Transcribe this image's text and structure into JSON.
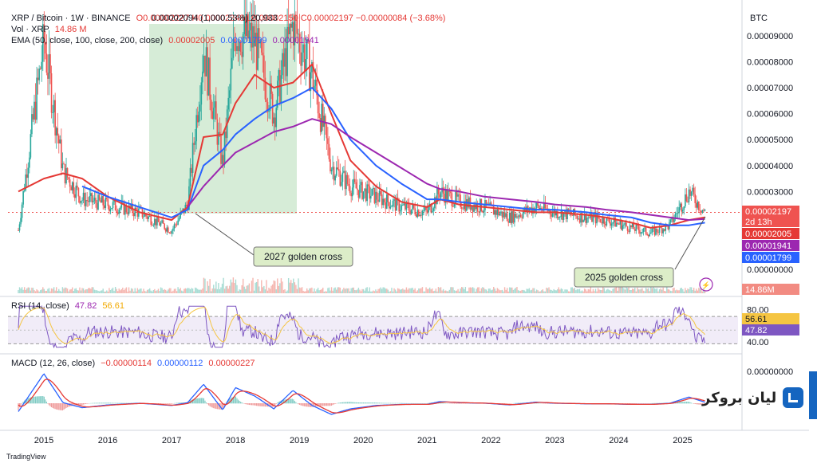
{
  "header": {
    "symbol": "XRP / Bitcoin · 1W · BINANCE",
    "ohlc": "O0.00002227 H0.00002248 L0.00002150 C0.00002197 −0.00000084 (−3.68%)",
    "overlay_text": "0.00002094 (1,000.53%) 20,933",
    "vol_label": "Vol · XRP",
    "vol_value": "14.86 M",
    "ema_label": "EMA (50, close, 100, close, 200, close)",
    "ema50": "0.00002005",
    "ema100": "0.00001799",
    "ema200": "0.00001941"
  },
  "price_axis": {
    "unit": "BTC",
    "ticks": [
      "0.00009000",
      "0.00008000",
      "0.00007000",
      "0.00006000",
      "0.00005000",
      "0.00004000",
      "0.00003000",
      "0.00000000"
    ],
    "last_price": "0.00002197",
    "countdown": "2d 13h",
    "ema50_tag": "0.00002005",
    "ema200_tag": "0.00001941",
    "ema100_tag": "0.00001799",
    "vol_tag": "14.86M"
  },
  "rsi": {
    "label": "RSI (14, close)",
    "value": "47.82",
    "ma": "56.61",
    "ticks": [
      "80.00",
      "40.00"
    ],
    "tag_ma": "56.61",
    "tag_value": "47.82"
  },
  "macd": {
    "label": "MACD (12, 26, close)",
    "hist": "−0.00000114",
    "macd": "0.00000112",
    "signal": "0.00000227",
    "tick": "0.00000000"
  },
  "time_axis": [
    "2015",
    "2016",
    "2017",
    "2018",
    "2019",
    "2020",
    "2021",
    "2022",
    "2023",
    "2024",
    "2025"
  ],
  "annotations": {
    "left": "2027 golden cross",
    "right": "2025 golden cross"
  },
  "brand": "لیان بروکر",
  "tradingview": "TradingView",
  "colors": {
    "ema50": "#e53935",
    "ema100": "#2962ff",
    "ema200": "#9c27b0",
    "up": "#26a69a",
    "down": "#ef5350",
    "rsi": "#7e57c2",
    "rsi_ma": "#f5c542"
  },
  "chart_data": {
    "type": "line",
    "title": "XRP / Bitcoin · 1W · BINANCE",
    "xlabel": "",
    "ylabel": "BTC",
    "ylim": [
      0,
      0.0001
    ],
    "x": [
      2014.6,
      2015.0,
      2015.3,
      2015.6,
      2016.0,
      2016.5,
      2017.0,
      2017.25,
      2017.5,
      2017.8,
      2018.0,
      2018.3,
      2018.6,
      2018.9,
      2019.2,
      2019.5,
      2019.8,
      2020.2,
      2020.6,
      2021.0,
      2021.2,
      2021.5,
      2021.9,
      2022.3,
      2022.7,
      2023.0,
      2023.5,
      2023.8,
      2024.2,
      2024.5,
      2024.8,
      2025.1,
      2025.35
    ],
    "series": [
      {
        "name": "Price",
        "values": [
          1.5e-05,
          8.8e-05,
          3.8e-05,
          2.7e-05,
          2.5e-05,
          2.2e-05,
          1.5e-05,
          2.5e-05,
          8.5e-05,
          4e-05,
          9.2e-05,
          8.8e-05,
          6e-05,
          9.5e-05,
          7.5e-05,
          4e-05,
          3.2e-05,
          2.8e-05,
          2.4e-05,
          2.2e-05,
          3e-05,
          2.6e-05,
          2.4e-05,
          2e-05,
          2.4e-05,
          2.2e-05,
          2e-05,
          1.9e-05,
          1.6e-05,
          1.4e-05,
          1.7e-05,
          3e-05,
          2.197e-05
        ]
      },
      {
        "name": "EMA 50",
        "values": [
          3e-05,
          3.5e-05,
          3.7e-05,
          3.5e-05,
          2.8e-05,
          2.2e-05,
          1.9e-05,
          2.4e-05,
          5.1e-05,
          5.2e-05,
          6.4e-05,
          7.5e-05,
          7e-05,
          7.2e-05,
          7.9e-05,
          6e-05,
          4.2e-05,
          3.2e-05,
          2.6e-05,
          2.4e-05,
          2.7e-05,
          2.5e-05,
          2.4e-05,
          2.3e-05,
          2.2e-05,
          2.2e-05,
          2.1e-05,
          2e-05,
          1.8e-05,
          1.6e-05,
          1.7e-05,
          1.9e-05,
          2.005e-05
        ]
      },
      {
        "name": "EMA 100",
        "values": [
          null,
          null,
          null,
          3.2e-05,
          2.8e-05,
          2.4e-05,
          2e-05,
          2.3e-05,
          4e-05,
          4.6e-05,
          5.2e-05,
          5.8e-05,
          6.3e-05,
          6.6e-05,
          7e-05,
          6.2e-05,
          5e-05,
          4e-05,
          3.3e-05,
          2.7e-05,
          2.7e-05,
          2.6e-05,
          2.5e-05,
          2.4e-05,
          2.3e-05,
          2.3e-05,
          2.2e-05,
          2.1e-05,
          2e-05,
          1.8e-05,
          1.7e-05,
          1.7e-05,
          1.799e-05
        ]
      },
      {
        "name": "EMA 200",
        "values": [
          null,
          null,
          null,
          null,
          null,
          null,
          null,
          2.4e-05,
          3.2e-05,
          4e-05,
          4.5e-05,
          4.9e-05,
          5.3e-05,
          5.5e-05,
          5.8e-05,
          5.6e-05,
          5.1e-05,
          4.5e-05,
          3.9e-05,
          3.3e-05,
          3.1e-05,
          3e-05,
          2.8e-05,
          2.7e-05,
          2.6e-05,
          2.5e-05,
          2.4e-05,
          2.3e-05,
          2.2e-05,
          2.1e-05,
          2e-05,
          1.9e-05,
          1.941e-05
        ]
      }
    ]
  }
}
